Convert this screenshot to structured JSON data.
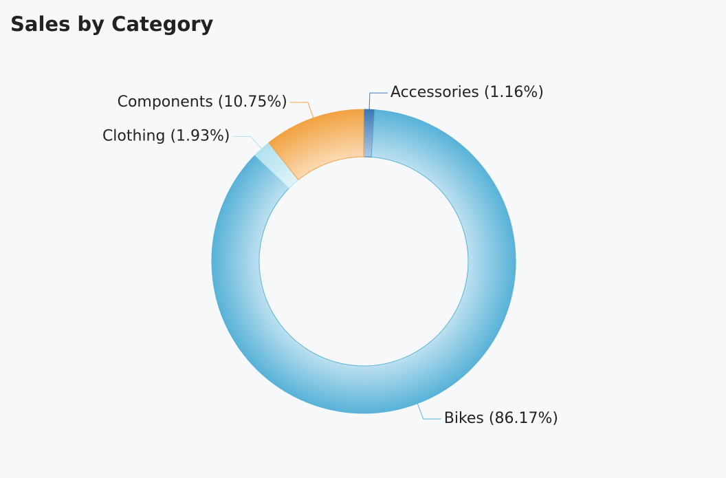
{
  "chart_data": {
    "type": "donut",
    "title": "Sales by Category",
    "values": [
      1.16,
      86.17,
      1.93,
      10.75
    ],
    "value_labels": [
      "Accessories (1.16%)",
      "Bikes (86.17%)",
      "Clothing (1.93%)",
      "Components (10.75%)"
    ],
    "colors": [
      "#3a78b5",
      "#58b2d8",
      "#b0e1ee",
      "#f2a240"
    ]
  }
}
